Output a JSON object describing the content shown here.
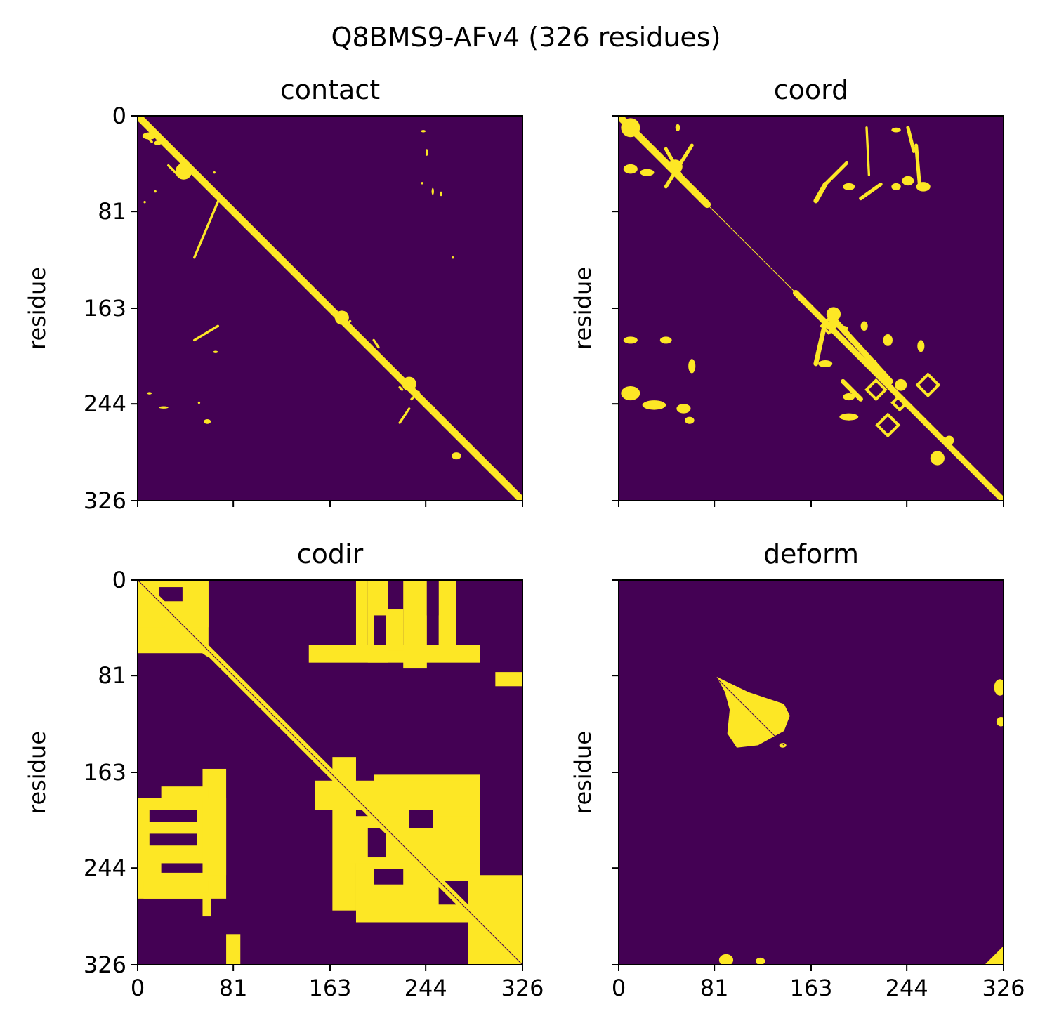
{
  "colors": {
    "background": "#440154",
    "foreground": "#fde725"
  },
  "chart_data": {
    "type": "heatmap",
    "title": "Q8BMS9-AFv4 (326 residues)",
    "n_residues": 326,
    "ticks": [
      0,
      81,
      163,
      244,
      326
    ],
    "ylabel": "residue",
    "panels": [
      {
        "id": "contact",
        "title": "contact",
        "show_xticklabels": false,
        "show_yticklabels": true,
        "show_ylabel": true,
        "diagonal": {
          "from": 0,
          "to": 326,
          "halfwidth": 3
        },
        "segments": [
          {
            "r1": 120,
            "c1": 48,
            "r2": 68,
            "c2": 70,
            "w": 2
          },
          {
            "r1": 190,
            "c1": 48,
            "r2": 178,
            "c2": 68,
            "w": 2
          },
          {
            "r1": 260,
            "c1": 222,
            "r2": 248,
            "c2": 230,
            "w": 2
          },
          {
            "r1": 230,
            "c1": 222,
            "r2": 232,
            "c2": 224,
            "w": 2
          },
          {
            "r1": 240,
            "c1": 232,
            "r2": 234,
            "c2": 238,
            "w": 2
          },
          {
            "r1": 176,
            "c1": 178,
            "r2": 174,
            "c2": 180,
            "w": 2
          },
          {
            "r1": 42,
            "c1": 26,
            "r2": 52,
            "c2": 36,
            "w": 2
          },
          {
            "r1": 190,
            "c1": 200,
            "r2": 196,
            "c2": 204,
            "w": 2
          },
          {
            "r1": 20,
            "c1": 10,
            "r2": 22,
            "c2": 12,
            "w": 2
          }
        ],
        "blobs": [
          {
            "r": 17,
            "c": 10,
            "rr": 3,
            "rc": 6
          },
          {
            "r": 23,
            "c": 17,
            "rr": 2,
            "rc": 3
          },
          {
            "r": 47,
            "c": 39,
            "rr": 7,
            "rc": 7
          },
          {
            "r": 171,
            "c": 173,
            "rr": 6,
            "rc": 6
          },
          {
            "r": 227,
            "c": 230,
            "rr": 6,
            "rc": 6
          },
          {
            "r": 64,
            "c": 15,
            "rr": 1,
            "rc": 1
          },
          {
            "r": 73,
            "c": 6,
            "rr": 1,
            "rc": 1
          },
          {
            "r": 48,
            "c": 65,
            "rr": 1,
            "rc": 1
          },
          {
            "r": 13,
            "c": 242,
            "rr": 1,
            "rc": 2
          },
          {
            "r": 31,
            "c": 245,
            "rr": 3,
            "rc": 1
          },
          {
            "r": 64,
            "c": 250,
            "rr": 3,
            "rc": 1
          },
          {
            "r": 57,
            "c": 241,
            "rr": 1,
            "rc": 1
          },
          {
            "r": 66,
            "c": 257,
            "rr": 2,
            "rc": 1
          },
          {
            "r": 120,
            "c": 267,
            "rr": 1,
            "rc": 1
          },
          {
            "r": 200,
            "c": 66,
            "rr": 1,
            "rc": 2
          },
          {
            "r": 200,
            "c": 200,
            "rr": 1,
            "rc": 2
          },
          {
            "r": 235,
            "c": 10,
            "rr": 1,
            "rc": 2
          },
          {
            "r": 247,
            "c": 22,
            "rr": 1,
            "rc": 4
          },
          {
            "r": 259,
            "c": 59,
            "rr": 2,
            "rc": 3
          },
          {
            "r": 243,
            "c": 52,
            "rr": 1,
            "rc": 1
          },
          {
            "r": 288,
            "c": 270,
            "rr": 3,
            "rc": 4
          },
          {
            "r": 247,
            "c": 250,
            "rr": 1,
            "rc": 2
          }
        ]
      },
      {
        "id": "coord",
        "title": "coord",
        "show_xticklabels": false,
        "show_yticklabels": false,
        "show_ylabel": true,
        "diagonal": {
          "from": 0,
          "to": 326,
          "halfwidth": 1
        },
        "segments": [
          {
            "r1": 0,
            "c1": 0,
            "r2": 75,
            "c2": 75,
            "w": 6
          },
          {
            "r1": 150,
            "c1": 150,
            "r2": 326,
            "c2": 326,
            "w": 5
          },
          {
            "r1": 28,
            "c1": 40,
            "r2": 60,
            "c2": 58,
            "w": 3
          },
          {
            "r1": 60,
            "c1": 40,
            "r2": 25,
            "c2": 62,
            "w": 3
          },
          {
            "r1": 72,
            "c1": 167,
            "r2": 58,
            "c2": 175,
            "w": 4
          },
          {
            "r1": 58,
            "c1": 175,
            "r2": 40,
            "c2": 193,
            "w": 3
          },
          {
            "r1": 70,
            "c1": 205,
            "r2": 58,
            "c2": 222,
            "w": 3
          },
          {
            "r1": 10,
            "c1": 210,
            "r2": 50,
            "c2": 212,
            "w": 2
          },
          {
            "r1": 10,
            "c1": 245,
            "r2": 30,
            "c2": 250,
            "w": 3
          },
          {
            "r1": 25,
            "c1": 252,
            "r2": 60,
            "c2": 255,
            "w": 3
          },
          {
            "r1": 210,
            "c1": 167,
            "r2": 175,
            "c2": 175,
            "w": 4
          },
          {
            "r1": 175,
            "c1": 175,
            "r2": 180,
            "c2": 193,
            "w": 3
          },
          {
            "r1": 170,
            "c1": 180,
            "r2": 225,
            "c2": 230,
            "w": 5
          },
          {
            "r1": 225,
            "c1": 190,
            "r2": 240,
            "c2": 205,
            "w": 4
          }
        ],
        "blobs": [
          {
            "r": 10,
            "c": 10,
            "rr": 8,
            "rc": 8
          },
          {
            "r": 43,
            "c": 48,
            "rr": 6,
            "rc": 6
          },
          {
            "r": 45,
            "c": 10,
            "rr": 4,
            "rc": 6
          },
          {
            "r": 48,
            "c": 24,
            "rr": 3,
            "rc": 6
          },
          {
            "r": 10,
            "c": 50,
            "rr": 3,
            "rc": 2
          },
          {
            "r": 60,
            "c": 195,
            "rr": 3,
            "rc": 5
          },
          {
            "r": 55,
            "c": 245,
            "rr": 4,
            "rc": 5
          },
          {
            "r": 60,
            "c": 258,
            "rr": 4,
            "rc": 6
          },
          {
            "r": 60,
            "c": 235,
            "rr": 3,
            "rc": 4
          },
          {
            "r": 12,
            "c": 235,
            "rr": 2,
            "rc": 4
          },
          {
            "r": 190,
            "c": 10,
            "rr": 3,
            "rc": 6
          },
          {
            "r": 190,
            "c": 40,
            "rr": 3,
            "rc": 5
          },
          {
            "r": 235,
            "c": 10,
            "rr": 6,
            "rc": 8
          },
          {
            "r": 245,
            "c": 30,
            "rr": 4,
            "rc": 10
          },
          {
            "r": 248,
            "c": 55,
            "rr": 4,
            "rc": 6
          },
          {
            "r": 258,
            "c": 60,
            "rr": 3,
            "rc": 4
          },
          {
            "r": 212,
            "c": 62,
            "rr": 6,
            "rc": 3
          },
          {
            "r": 168,
            "c": 182,
            "rr": 6,
            "rc": 6
          },
          {
            "r": 178,
            "c": 208,
            "rr": 4,
            "rc": 3
          },
          {
            "r": 190,
            "c": 228,
            "rr": 5,
            "rc": 4
          },
          {
            "r": 195,
            "c": 256,
            "rr": 5,
            "rc": 3
          },
          {
            "r": 210,
            "c": 175,
            "rr": 3,
            "rc": 6
          },
          {
            "r": 210,
            "c": 215,
            "rr": 4,
            "rc": 4
          },
          {
            "r": 238,
            "c": 195,
            "rr": 3,
            "rc": 5
          },
          {
            "r": 255,
            "c": 195,
            "rr": 3,
            "rc": 8
          },
          {
            "r": 228,
            "c": 239,
            "rr": 5,
            "rc": 5
          },
          {
            "r": 290,
            "c": 270,
            "rr": 6,
            "rc": 6
          },
          {
            "r": 275,
            "c": 280,
            "rr": 4,
            "rc": 4
          }
        ],
        "rings": [
          {
            "r": 178,
            "c": 178,
            "rad": 6
          },
          {
            "r": 232,
            "c": 218,
            "rad": 8
          },
          {
            "r": 228,
            "c": 262,
            "rad": 9
          },
          {
            "r": 262,
            "c": 228,
            "rad": 9
          },
          {
            "r": 243,
            "c": 238,
            "rad": 6
          }
        ]
      },
      {
        "id": "codir",
        "title": "codir",
        "show_xticklabels": true,
        "show_yticklabels": true,
        "show_ylabel": true,
        "diagonal": {
          "from": 0,
          "to": 326,
          "halfwidth": 1
        },
        "segments": [
          {
            "r1": 0,
            "c1": 0,
            "r2": 326,
            "c2": 326,
            "w": 7
          },
          {
            "r1": 20,
            "c1": 0,
            "r2": 62,
            "c2": 60,
            "w": 6
          }
        ],
        "rects": [
          {
            "r0": 0,
            "r1": 62,
            "c0": 0,
            "c1": 60
          },
          {
            "r0": 0,
            "r1": 40,
            "c0": 0,
            "c1": 60
          },
          {
            "r0": 0,
            "r1": 70,
            "c0": 195,
            "c1": 212
          },
          {
            "r0": 0,
            "r1": 75,
            "c0": 225,
            "c1": 245
          },
          {
            "r0": 0,
            "r1": 55,
            "c0": 255,
            "c1": 270
          },
          {
            "r0": 0,
            "r1": 60,
            "c0": 185,
            "c1": 195
          },
          {
            "r0": 55,
            "r1": 70,
            "c0": 145,
            "c1": 290
          },
          {
            "r0": 25,
            "r1": 60,
            "c0": 212,
            "c1": 225
          },
          {
            "r0": 78,
            "r1": 90,
            "c0": 303,
            "c1": 326
          },
          {
            "r0": 185,
            "r1": 270,
            "c0": 0,
            "c1": 75
          },
          {
            "r0": 160,
            "r1": 250,
            "c0": 55,
            "c1": 75
          },
          {
            "r0": 175,
            "r1": 185,
            "c0": 20,
            "c1": 60
          },
          {
            "r0": 255,
            "r1": 270,
            "c0": 5,
            "c1": 60
          },
          {
            "r0": 265,
            "r1": 285,
            "c0": 55,
            "c1": 62
          },
          {
            "r0": 150,
            "r1": 280,
            "c0": 165,
            "c1": 185
          },
          {
            "r0": 165,
            "r1": 280,
            "c0": 200,
            "c1": 290
          },
          {
            "r0": 170,
            "r1": 195,
            "c0": 150,
            "c1": 290
          },
          {
            "r0": 225,
            "r1": 290,
            "c0": 185,
            "c1": 285
          },
          {
            "r0": 200,
            "r1": 240,
            "c0": 180,
            "c1": 290
          },
          {
            "r0": 250,
            "r1": 326,
            "c0": 280,
            "c1": 326
          },
          {
            "r0": 300,
            "r1": 326,
            "c0": 75,
            "c1": 87
          }
        ],
        "holes": [
          {
            "r0": 6,
            "r1": 18,
            "c0": 18,
            "c1": 38
          },
          {
            "r0": 195,
            "r1": 205,
            "c0": 10,
            "c1": 50
          },
          {
            "r0": 215,
            "r1": 225,
            "c0": 10,
            "c1": 50
          },
          {
            "r0": 240,
            "r1": 248,
            "c0": 20,
            "c1": 55
          },
          {
            "r0": 210,
            "r1": 235,
            "c0": 195,
            "c1": 210
          },
          {
            "r0": 195,
            "r1": 210,
            "c0": 230,
            "c1": 250
          },
          {
            "r0": 245,
            "r1": 258,
            "c0": 200,
            "c1": 225
          },
          {
            "r0": 255,
            "r1": 275,
            "c0": 255,
            "c1": 280
          },
          {
            "r0": 0,
            "r1": 30,
            "c0": 245,
            "c1": 255
          },
          {
            "r0": 30,
            "r1": 55,
            "c0": 200,
            "c1": 210
          }
        ]
      },
      {
        "id": "deform",
        "title": "deform",
        "show_xticklabels": true,
        "show_yticklabels": false,
        "show_ylabel": true,
        "diagonal": {
          "from": 82,
          "to": 140,
          "halfwidth": 0
        },
        "polygons": [
          [
            [
              82,
              83
            ],
            [
              95,
              110
            ],
            [
              105,
              140
            ],
            [
              115,
              145
            ],
            [
              128,
              140
            ],
            [
              140,
              118
            ],
            [
              142,
              100
            ],
            [
              130,
              92
            ],
            [
              110,
              94
            ],
            [
              95,
              90
            ]
          ]
        ],
        "blobs": [
          {
            "r": 140,
            "c": 139,
            "rr": 2,
            "rc": 3
          },
          {
            "r": 91,
            "c": 323,
            "rr": 7,
            "rc": 5
          },
          {
            "r": 120,
            "c": 324,
            "rr": 4,
            "rc": 4
          },
          {
            "r": 322,
            "c": 91,
            "rr": 5,
            "rc": 6
          },
          {
            "r": 323,
            "c": 120,
            "rr": 3,
            "rc": 4
          }
        ],
        "triangle": [
          [
            326,
            310
          ],
          [
            326,
            326
          ],
          [
            310,
            326
          ]
        ]
      }
    ]
  }
}
